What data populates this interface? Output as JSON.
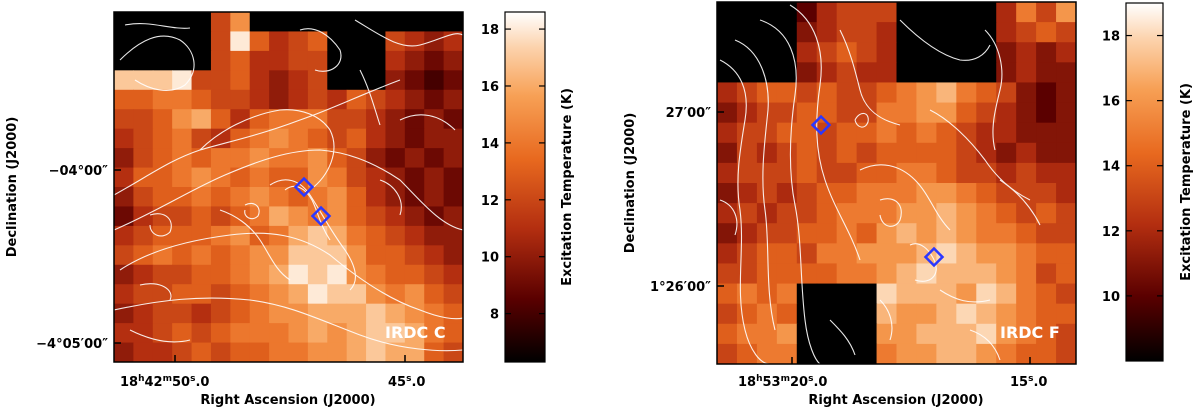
{
  "chart_data": [
    {
      "type": "heatmap",
      "field_label": "IRDC C",
      "xlabel": "Right Ascension (J2000)",
      "ylabel": "Declination (J2000)",
      "x_ticks": [
        {
          "label": "18h42m50s.0",
          "h": "18",
          "m": "42",
          "s": "50",
          "frac": ".0"
        },
        {
          "label": "45s.0",
          "h": "",
          "m": "",
          "s": "45",
          "frac": ".0"
        }
      ],
      "y_ticks": [
        {
          "label": "-04°00'\"",
          "text": "−04°00″"
        },
        {
          "label": "-4°05'00\"",
          "text": "−4°05′00″"
        }
      ],
      "colorbar": {
        "label": "Excitation Temperature (K)",
        "range": [
          6.3,
          18.6
        ],
        "ticks": [
          8,
          10,
          12,
          14,
          16,
          18
        ]
      },
      "markers": [
        {
          "name": "source-1",
          "value": 0
        },
        {
          "name": "source-2",
          "value": 0
        }
      ],
      "grid_temperatures": [
        [
          4,
          4,
          4,
          4,
          4,
          12,
          15,
          4,
          4,
          4,
          4,
          4,
          4,
          4,
          4,
          4,
          4,
          4
        ],
        [
          4,
          4,
          4,
          4,
          4,
          12,
          18,
          13,
          11,
          12,
          13,
          4,
          4,
          4,
          12,
          11,
          10,
          11
        ],
        [
          4,
          4,
          4,
          4,
          4,
          12,
          13,
          11,
          11,
          12,
          12,
          4,
          4,
          4,
          11,
          10,
          9,
          10
        ],
        [
          17,
          17,
          17,
          18,
          12,
          12,
          13,
          11,
          10,
          11,
          12,
          4,
          4,
          4,
          10,
          9,
          8,
          9
        ],
        [
          13,
          13,
          14,
          14,
          13,
          12,
          12,
          11,
          10,
          11,
          12,
          11,
          13,
          12,
          11,
          10,
          9,
          10
        ],
        [
          12,
          12,
          13,
          15,
          16,
          13,
          11,
          13,
          14,
          14,
          14,
          12,
          12,
          11,
          10,
          9,
          10,
          9
        ],
        [
          11,
          12,
          13,
          14,
          12,
          11,
          13,
          14,
          15,
          14,
          13,
          12,
          13,
          11,
          10,
          9,
          10,
          10
        ],
        [
          10,
          12,
          13,
          14,
          13,
          14,
          14,
          15,
          14,
          14,
          15,
          13,
          12,
          10,
          9,
          10,
          9,
          10
        ],
        [
          11,
          13,
          13,
          14,
          15,
          14,
          13,
          14,
          13,
          13,
          15,
          14,
          12,
          11,
          10,
          9,
          10,
          9
        ],
        [
          10,
          12,
          13,
          13,
          14,
          13,
          14,
          15,
          14,
          13,
          14,
          15,
          13,
          11,
          10,
          9,
          10,
          9
        ],
        [
          9,
          11,
          12,
          12,
          13,
          12,
          13,
          14,
          16,
          15,
          14,
          15,
          13,
          12,
          11,
          10,
          9,
          10
        ],
        [
          11,
          12,
          13,
          13,
          13,
          14,
          15,
          13,
          14,
          16,
          17,
          16,
          14,
          13,
          12,
          11,
          10,
          10
        ],
        [
          12,
          13,
          14,
          13,
          14,
          13,
          14,
          15,
          15,
          17,
          17,
          17,
          15,
          13,
          13,
          12,
          11,
          10
        ],
        [
          10,
          11,
          12,
          12,
          13,
          13,
          14,
          15,
          16,
          18,
          17,
          18,
          15,
          14,
          13,
          13,
          12,
          11
        ],
        [
          11,
          12,
          12,
          13,
          13,
          12,
          13,
          14,
          15,
          16,
          18,
          17,
          17,
          15,
          14,
          15,
          13,
          12
        ],
        [
          10,
          11,
          12,
          12,
          11,
          12,
          13,
          14,
          15,
          15,
          16,
          16,
          16,
          17,
          16,
          15,
          14,
          13
        ],
        [
          11,
          11,
          12,
          13,
          12,
          13,
          14,
          14,
          14,
          15,
          16,
          15,
          16,
          17,
          17,
          16,
          14,
          13
        ],
        [
          10,
          11,
          11,
          12,
          13,
          12,
          13,
          13,
          14,
          14,
          15,
          15,
          16,
          17,
          16,
          16,
          13,
          12
        ]
      ]
    },
    {
      "type": "heatmap",
      "field_label": "IRDC F",
      "xlabel": "Right Ascension (J2000)",
      "ylabel": "Declination (J2000)",
      "x_ticks": [
        {
          "label": "18h53m20s.0",
          "h": "18",
          "m": "53",
          "s": "20",
          "frac": ".0"
        },
        {
          "label": "15s.0",
          "h": "",
          "m": "",
          "s": "15",
          "frac": ".0"
        }
      ],
      "y_ticks": [
        {
          "label": "27'00\"",
          "text": "27′00″"
        },
        {
          "label": "1°26'00\"",
          "text": "1°26′00″"
        }
      ],
      "colorbar": {
        "label": "Excitation Temperature (K)",
        "range": [
          8.0,
          19.0
        ],
        "ticks": [
          10,
          12,
          14,
          16,
          18
        ]
      },
      "markers": [
        {
          "name": "source-1",
          "value": 0
        },
        {
          "name": "source-2",
          "value": 0
        }
      ],
      "grid_temperatures": [
        [
          4,
          4,
          4,
          4,
          10,
          12,
          13,
          13,
          13,
          4,
          4,
          4,
          4,
          4,
          12,
          15,
          13,
          16
        ],
        [
          4,
          4,
          4,
          4,
          11,
          12,
          13,
          13,
          12,
          4,
          4,
          4,
          4,
          4,
          12,
          13,
          14,
          13
        ],
        [
          4,
          4,
          4,
          4,
          12,
          13,
          14,
          13,
          12,
          4,
          4,
          4,
          4,
          4,
          11,
          12,
          11,
          12
        ],
        [
          4,
          4,
          4,
          4,
          11,
          12,
          13,
          12,
          12,
          4,
          4,
          4,
          4,
          4,
          11,
          12,
          11,
          11
        ],
        [
          12,
          13,
          14,
          14,
          13,
          14,
          13,
          13,
          14,
          15,
          16,
          17,
          15,
          14,
          13,
          11,
          10,
          11
        ],
        [
          11,
          12,
          13,
          13,
          14,
          14,
          13,
          13,
          15,
          15,
          16,
          16,
          14,
          13,
          12,
          11,
          10,
          11
        ],
        [
          12,
          13,
          13,
          14,
          14,
          13,
          14,
          14,
          15,
          14,
          15,
          14,
          13,
          12,
          12,
          11,
          11,
          11
        ],
        [
          11,
          13,
          12,
          13,
          14,
          13,
          14,
          13,
          14,
          14,
          14,
          14,
          13,
          12,
          11,
          12,
          11,
          11
        ],
        [
          12,
          13,
          13,
          13,
          14,
          13,
          13,
          14,
          14,
          15,
          15,
          14,
          13,
          13,
          12,
          13,
          12,
          12
        ],
        [
          11,
          12,
          13,
          12,
          13,
          14,
          14,
          15,
          15,
          15,
          16,
          16,
          15,
          14,
          13,
          13,
          13,
          12
        ],
        [
          12,
          13,
          12,
          13,
          13,
          14,
          15,
          15,
          15,
          16,
          16,
          17,
          16,
          15,
          14,
          13,
          14,
          13
        ],
        [
          11,
          12,
          13,
          13,
          14,
          14,
          15,
          14,
          16,
          17,
          16,
          17,
          16,
          15,
          15,
          14,
          13,
          13
        ],
        [
          12,
          13,
          14,
          14,
          13,
          15,
          15,
          16,
          16,
          16,
          17,
          18,
          17,
          16,
          16,
          15,
          14,
          14
        ],
        [
          13,
          13,
          14,
          14,
          14,
          14,
          15,
          15,
          16,
          17,
          18,
          17,
          17,
          17,
          16,
          15,
          13,
          14
        ],
        [
          14,
          15,
          14,
          15,
          4,
          4,
          4,
          4,
          18,
          17,
          17,
          17,
          16,
          18,
          17,
          15,
          14,
          13
        ],
        [
          13,
          14,
          15,
          14,
          4,
          4,
          4,
          4,
          17,
          16,
          16,
          17,
          18,
          17,
          16,
          15,
          14,
          14
        ],
        [
          14,
          15,
          15,
          16,
          4,
          4,
          4,
          4,
          16,
          16,
          17,
          17,
          17,
          18,
          16,
          15,
          14,
          13
        ],
        [
          13,
          14,
          15,
          15,
          4,
          4,
          4,
          4,
          15,
          16,
          16,
          17,
          17,
          16,
          15,
          14,
          14,
          13
        ]
      ]
    }
  ]
}
